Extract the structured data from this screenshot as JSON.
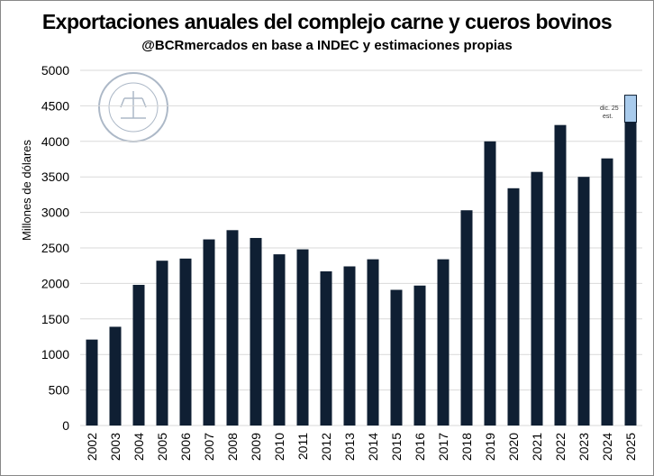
{
  "chart_data": {
    "type": "bar",
    "title": "Exportaciones anuales del complejo carne y cueros bovinos",
    "subtitle": "@BCRmercados en base a INDEC y estimaciones propias",
    "xlabel": "",
    "ylabel": "Millones de dólares",
    "ylim": [
      0,
      5000
    ],
    "yticks": [
      0,
      500,
      1000,
      1500,
      2000,
      2500,
      3000,
      3500,
      4000,
      4500,
      5000
    ],
    "grid": true,
    "categories": [
      "2002",
      "2003",
      "2004",
      "2005",
      "2006",
      "2007",
      "2008",
      "2009",
      "2010",
      "2011",
      "2012",
      "2013",
      "2014",
      "2015",
      "2016",
      "2017",
      "2018",
      "2019",
      "2020",
      "2021",
      "2022",
      "2023",
      "2024",
      "2025"
    ],
    "series": [
      {
        "name": "Exportaciones",
        "color": "#0f1f33",
        "values": [
          1210,
          1390,
          1980,
          2320,
          2350,
          2620,
          2750,
          2640,
          2410,
          2480,
          2170,
          2240,
          2340,
          1910,
          1970,
          2340,
          3030,
          4000,
          3340,
          3570,
          4230,
          3500,
          3760,
          4270
        ]
      },
      {
        "name": "Estimación dic. 25",
        "color": "#a9cbec",
        "values": [
          0,
          0,
          0,
          0,
          0,
          0,
          0,
          0,
          0,
          0,
          0,
          0,
          0,
          0,
          0,
          0,
          0,
          0,
          0,
          0,
          0,
          0,
          0,
          380
        ]
      }
    ],
    "annotations": [
      {
        "category": "2025",
        "line1": "dic. 25",
        "line2": "est."
      }
    ],
    "watermark": "BOLSA DE COMERCIO DE ROSARIO"
  }
}
